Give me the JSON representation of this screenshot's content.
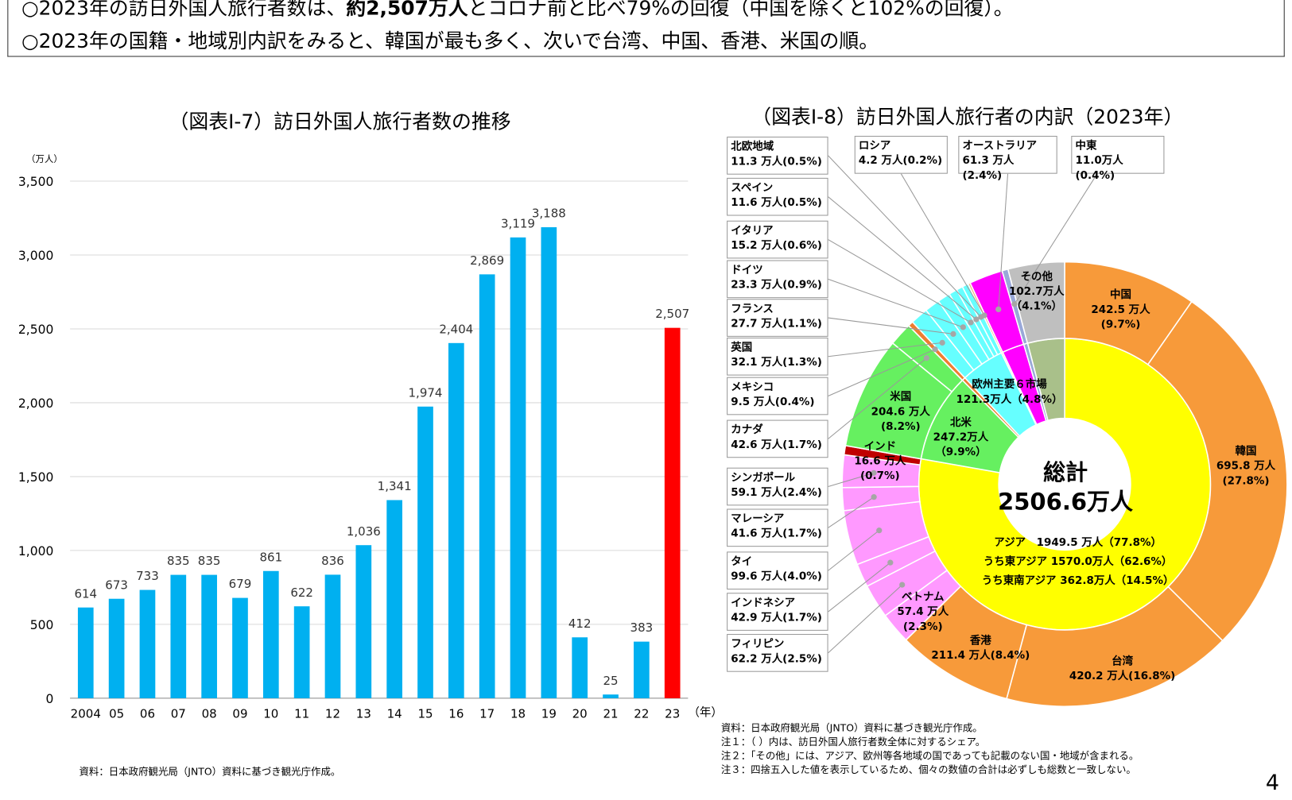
{
  "summary": {
    "line1_pre": "○2023年の訪日外国人旅行者数は、",
    "line1_bold": "約2,507万人",
    "line1_post": "とコロナ前と比べ79%の回復（中国を除くと102%の回復）。",
    "line2": "○2023年の国籍・地域別内訳をみると、韓国が最も多く、次いで台湾、中国、香港、米国の順。"
  },
  "page_number": "4",
  "chart_data": [
    {
      "type": "bar",
      "title": "（図表Ⅰ-7）訪日外国人旅行者数の推移",
      "ylabel": "（万人）",
      "xlabel": "（年）",
      "ylim": [
        0,
        3500
      ],
      "yticks": [
        "0",
        "500",
        "1,000",
        "1,500",
        "2,000",
        "2,500",
        "3,000",
        "3,500"
      ],
      "ytick_values": [
        0,
        500,
        1000,
        1500,
        2000,
        2500,
        3000,
        3500
      ],
      "grid": true,
      "categories": [
        "2004",
        "05",
        "06",
        "07",
        "08",
        "09",
        "10",
        "11",
        "12",
        "13",
        "14",
        "15",
        "16",
        "17",
        "18",
        "19",
        "20",
        "21",
        "22",
        "23"
      ],
      "values": [
        614,
        673,
        733,
        835,
        835,
        679,
        861,
        622,
        836,
        1036,
        1341,
        1974,
        2404,
        2869,
        3119,
        3188,
        412,
        25,
        383,
        2507
      ],
      "value_labels": [
        "614",
        "673",
        "733",
        "835",
        "835",
        "679",
        "861",
        "622",
        "836",
        "1,036",
        "1,341",
        "1,974",
        "2,404",
        "2,869",
        "3,119",
        "3,188",
        "412",
        "25",
        "383",
        "2,507"
      ],
      "colors": {
        "default": "#00b0f0",
        "highlight": "#ff0000"
      },
      "highlight_index": 19,
      "source": "資料：日本政府観光局（JNTO）資料に基づき観光庁作成。"
    },
    {
      "type": "pie",
      "subtype": "double-donut",
      "title": "（図表Ⅰ-8）訪日外国人旅行者の内訳（2023年）",
      "center_label": "総計",
      "center_value": "2506.6万人",
      "unit": "万人",
      "inner_ring": [
        {
          "name": "アジア",
          "value": 1949.5,
          "share": "77.8%",
          "color": "#ffff00"
        },
        {
          "name": "北米",
          "value": 247.2,
          "share": "9.9%",
          "color": "#66f060"
        },
        {
          "name": "メキシコ",
          "value": 9.5,
          "share": "0.4%",
          "color": "#ed7d31"
        },
        {
          "name": "欧州主要６市場",
          "value": 121.3,
          "share": "4.8%",
          "color": "#66ffff"
        },
        {
          "name": "ロシア",
          "value": 4.2,
          "share": "0.2%",
          "color": "#f4b183"
        },
        {
          "name": "オーストラリア",
          "value": 61.3,
          "share": "2.4%",
          "color": "#ff00ff"
        },
        {
          "name": "中東",
          "value": 11.0,
          "share": "0.4%",
          "color": "#99a8d8"
        },
        {
          "name": "その他",
          "value": 102.7,
          "share": "4.1%",
          "color": "#a9c08a"
        }
      ],
      "outer_ring": [
        {
          "name": "中国",
          "value": 242.5,
          "share": "9.7%",
          "color": "#f79a3a"
        },
        {
          "name": "韓国",
          "value": 695.8,
          "share": "27.8%",
          "color": "#f79a3a"
        },
        {
          "name": "台湾",
          "value": 420.2,
          "share": "16.8%",
          "color": "#f79a3a"
        },
        {
          "name": "香港",
          "value": 211.4,
          "share": "8.4%",
          "color": "#f79a3a"
        },
        {
          "name": "ベトナム",
          "value": 57.4,
          "share": "2.3%",
          "color": "#ff99ff"
        },
        {
          "name": "フィリピン",
          "value": 62.2,
          "share": "2.5%",
          "color": "#ff99ff"
        },
        {
          "name": "インドネシア",
          "value": 42.9,
          "share": "1.7%",
          "color": "#ff99ff"
        },
        {
          "name": "タイ",
          "value": 99.6,
          "share": "4.0%",
          "color": "#ff99ff"
        },
        {
          "name": "マレーシア",
          "value": 41.6,
          "share": "1.7%",
          "color": "#ff99ff"
        },
        {
          "name": "シンガポール",
          "value": 59.1,
          "share": "2.4%",
          "color": "#ff99ff"
        },
        {
          "name": "インド",
          "value": 16.6,
          "share": "0.7%",
          "color": "#c00000"
        },
        {
          "name": "米国",
          "value": 204.6,
          "share": "8.2%",
          "color": "#66f060"
        },
        {
          "name": "カナダ",
          "value": 42.6,
          "share": "1.7%",
          "color": "#66f060"
        },
        {
          "name": "メキシコ",
          "value": 9.5,
          "share": "0.4%",
          "color": "#ed7d31"
        },
        {
          "name": "英国",
          "value": 32.1,
          "share": "1.3%",
          "color": "#66ffff"
        },
        {
          "name": "フランス",
          "value": 27.7,
          "share": "1.1%",
          "color": "#66ffff"
        },
        {
          "name": "ドイツ",
          "value": 23.3,
          "share": "0.9%",
          "color": "#66ffff"
        },
        {
          "name": "イタリア",
          "value": 15.2,
          "share": "0.6%",
          "color": "#66ffff"
        },
        {
          "name": "スペイン",
          "value": 11.6,
          "share": "0.5%",
          "color": "#66ffff"
        },
        {
          "name": "北欧地域",
          "value": 11.3,
          "share": "0.5%",
          "color": "#66ffff"
        },
        {
          "name": "ロシア",
          "value": 4.2,
          "share": "0.2%",
          "color": "#f4b183"
        },
        {
          "name": "オーストラリア",
          "value": 61.3,
          "share": "2.4%",
          "color": "#ff00ff"
        },
        {
          "name": "中東",
          "value": 11.0,
          "share": "0.4%",
          "color": "#99a8d8"
        },
        {
          "name": "その他",
          "value": 102.7,
          "share": "4.1%",
          "color": "#bfbfbf"
        }
      ],
      "labels": {
        "china": [
          "中国",
          "242.5 万人",
          "(9.7%)"
        ],
        "korea": [
          "韓国",
          "695.8 万人",
          "(27.8%)"
        ],
        "taiwan": [
          "台湾",
          "420.2 万人(16.8%)"
        ],
        "hongkong": [
          "香港",
          "211.4 万人(8.4%)"
        ],
        "vietnam": [
          "ベトナム",
          "57.4 万人",
          "(2.3%)"
        ],
        "usa": [
          "米国",
          "204.6 万人",
          "(8.2%)"
        ],
        "india": [
          "インド",
          "16.6 万人",
          "(0.7%)"
        ],
        "north_america": [
          "北米",
          "247.2万人",
          "（9.9%）"
        ],
        "europe": [
          "欧州主要６市場",
          "121.3万人（4.8%）"
        ],
        "other": [
          "その他",
          "102.7万人",
          "（4.1%）"
        ],
        "asia": [
          "アジア　1949.5 万人（77.8%）",
          "うち東アジア 1570.0万人（62.6%）",
          "うち東南アジア 362.8万人（14.5%）"
        ]
      },
      "callouts": [
        {
          "name": "北欧地域",
          "text": "11.3 万人(0.5%)",
          "seg": 19
        },
        {
          "name": "スペイン",
          "text": "11.6 万人(0.5%)",
          "seg": 18
        },
        {
          "name": "イタリア",
          "text": "15.2 万人(0.6%)",
          "seg": 17
        },
        {
          "name": "ドイツ",
          "text": "23.3 万人(0.9%)",
          "seg": 16
        },
        {
          "name": "フランス",
          "text": "27.7 万人(1.1%)",
          "seg": 15
        },
        {
          "name": "英国",
          "text": "32.1 万人(1.3%)",
          "seg": 14
        },
        {
          "name": "メキシコ",
          "text": "9.5 万人(0.4%)",
          "seg": 13
        },
        {
          "name": "カナダ",
          "text": "42.6 万人(1.7%)",
          "seg": 12
        },
        {
          "name": "シンガポール",
          "text": "59.1 万人(2.4%)",
          "seg": 9
        },
        {
          "name": "マレーシア",
          "text": "41.6 万人(1.7%)",
          "seg": 8
        },
        {
          "name": "タイ",
          "text": "99.6 万人(4.0%)",
          "seg": 7
        },
        {
          "name": "インドネシア",
          "text": "42.9 万人(1.7%)",
          "seg": 6
        },
        {
          "name": "フィリピン",
          "text": "62.2 万人(2.5%)",
          "seg": 5
        },
        {
          "name": "ロシア",
          "text": "4.2 万人(0.2%)",
          "seg": 20
        },
        {
          "name": "オーストラリア",
          "text": "61.3 万人(2.4%)",
          "seg": 21
        },
        {
          "name": "中東",
          "text": "11.0万人(0.4%)",
          "seg": 22
        }
      ],
      "notes": [
        "資料：日本政府観光局（JNTO）資料に基づき観光庁作成。",
        "注１：（ ）内は、訪日外国人旅行者数全体に対するシェア。",
        "注２：「その他」には、アジア、欧州等各地域の国であっても記載のない国・地域が含まれる。",
        "注３：四捨五入した値を表示しているため、個々の数値の合計は必ずしも総数と一致しない。"
      ]
    }
  ]
}
